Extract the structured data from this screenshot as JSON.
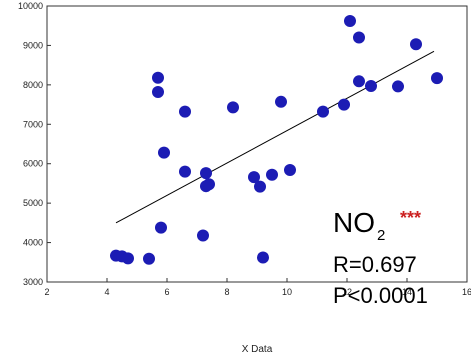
{
  "chart_data": {
    "type": "scatter",
    "xlabel": "X Data",
    "ylabel": "",
    "xlim": [
      2,
      16
    ],
    "ylim": [
      3000,
      10000
    ],
    "x_ticks": [
      "2",
      "4",
      "6",
      "8",
      "10",
      "12",
      "14",
      "16"
    ],
    "y_ticks": [
      "3000",
      "4000",
      "5000",
      "6000",
      "7000",
      "8000",
      "9000",
      "10000"
    ],
    "x_tick_values": [
      2,
      4,
      6,
      8,
      10,
      12,
      14,
      16
    ],
    "y_tick_values": [
      3000,
      4000,
      5000,
      6000,
      7000,
      8000,
      9000,
      10000
    ],
    "grid": false,
    "marker_color": "#1c1cb4",
    "points": [
      {
        "x": 4.3,
        "y": 3670
      },
      {
        "x": 4.5,
        "y": 3650
      },
      {
        "x": 4.7,
        "y": 3600
      },
      {
        "x": 5.4,
        "y": 3590
      },
      {
        "x": 5.7,
        "y": 8180
      },
      {
        "x": 5.7,
        "y": 7820
      },
      {
        "x": 5.8,
        "y": 4380
      },
      {
        "x": 5.9,
        "y": 6280
      },
      {
        "x": 6.6,
        "y": 7320
      },
      {
        "x": 6.6,
        "y": 5800
      },
      {
        "x": 7.2,
        "y": 4180
      },
      {
        "x": 7.3,
        "y": 5760
      },
      {
        "x": 7.3,
        "y": 5430
      },
      {
        "x": 7.4,
        "y": 5480
      },
      {
        "x": 8.2,
        "y": 7430
      },
      {
        "x": 8.9,
        "y": 5660
      },
      {
        "x": 9.1,
        "y": 5420
      },
      {
        "x": 9.2,
        "y": 3620
      },
      {
        "x": 9.5,
        "y": 5720
      },
      {
        "x": 9.8,
        "y": 7570
      },
      {
        "x": 10.1,
        "y": 5840
      },
      {
        "x": 11.2,
        "y": 7320
      },
      {
        "x": 11.9,
        "y": 7500
      },
      {
        "x": 12.1,
        "y": 9620
      },
      {
        "x": 12.4,
        "y": 9200
      },
      {
        "x": 12.4,
        "y": 8090
      },
      {
        "x": 12.8,
        "y": 7970
      },
      {
        "x": 13.7,
        "y": 7960
      },
      {
        "x": 14.3,
        "y": 9030
      },
      {
        "x": 15.0,
        "y": 8170
      }
    ],
    "trendline": {
      "x": [
        4.3,
        14.9
      ],
      "y": [
        4500,
        8850
      ]
    },
    "annotations": {
      "compound": "NO",
      "subscript": "2",
      "stars": "***",
      "stars_color": "#cc2222",
      "r": "R=0.697",
      "p": "P<0.0001"
    }
  }
}
